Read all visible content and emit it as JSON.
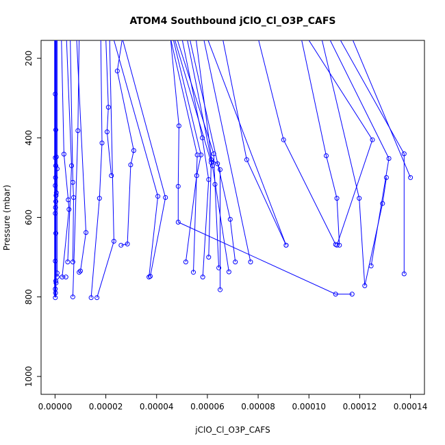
{
  "chart_data": {
    "type": "scatter",
    "title": "ATOM4 Southbound jClO_Cl_O3P_CAFS",
    "xlabel": "jClO_Cl_O3P_CAFS",
    "ylabel": "Pressure (mbar)",
    "xlim": [
      -5.5e-06,
      0.0001455
    ],
    "ylim": [
      1045,
      155
    ],
    "y_reversed": true,
    "x_ticks": [
      "0.00000",
      "0.00002",
      "0.00004",
      "0.00006",
      "0.00008",
      "0.00010",
      "0.00012",
      "0.00014"
    ],
    "x_tick_values": [
      0,
      2e-05,
      4e-05,
      6e-05,
      8e-05,
      0.0001,
      0.00012,
      0.00014
    ],
    "y_ticks": [
      "200",
      "400",
      "600",
      "800",
      "1000"
    ],
    "y_tick_values": [
      200,
      400,
      600,
      800,
      1000
    ],
    "grid": false,
    "legend": "none",
    "series": [
      {
        "color": "#0000ff",
        "marker": "open-circle",
        "connected": true,
        "profiles": [
          [
            [
              1e-07,
              150
            ],
            [
              1e-07,
              290
            ],
            [
              1e-07,
              450
            ],
            [
              1e-07,
              520
            ],
            [
              1e-07,
              590
            ],
            [
              1e-07,
              710
            ],
            [
              1e-07,
              780
            ],
            [
              1e-07,
              802
            ]
          ],
          [
            [
              3e-07,
              150
            ],
            [
              3e-07,
              380
            ],
            [
              3e-07,
              470
            ],
            [
              3e-07,
              560
            ],
            [
              3e-07,
              640
            ],
            [
              3e-07,
              760
            ]
          ],
          [
            [
              2e-07,
              150
            ],
            [
              2e-07,
              500
            ],
            [
              2e-07,
              575
            ],
            [
              2e-07,
              790
            ]
          ],
          [
            [
              8e-07,
              150
            ],
            [
              8e-07,
              478
            ],
            [
              8e-07,
              740
            ],
            [
              8e-07,
              750
            ]
          ],
          [
            [
              5e-07,
              150
            ],
            [
              5e-07,
              448
            ],
            [
              5e-07,
              538
            ]
          ],
          [
            [
              4e-07,
              150
            ],
            [
              4e-07,
              545
            ],
            [
              4e-07,
              765
            ]
          ],
          [
            [
              2.5e-06,
              150
            ],
            [
              3.5e-06,
              441
            ],
            [
              5.2e-06,
              556
            ],
            [
              5.5e-06,
              580
            ],
            [
              2.8e-06,
              750
            ],
            [
              4.3e-06,
              750
            ]
          ],
          [
            [
              4.5e-06,
              150
            ],
            [
              6.5e-06,
              470
            ],
            [
              5e-06,
              712
            ]
          ],
          [
            [
              6e-06,
              150
            ],
            [
              7e-06,
              512
            ],
            [
              7.3e-06,
              550
            ],
            [
              7e-06,
              712
            ]
          ],
          [
            [
              9.5e-06,
              150
            ],
            [
              9e-06,
              382
            ],
            [
              7e-06,
              800
            ]
          ],
          [
            [
              8.5e-06,
              150
            ],
            [
              1.22e-05,
              638
            ],
            [
              1e-05,
              735
            ],
            [
              9.5e-06,
              738
            ]
          ],
          [
            [
              1.8e-05,
              150
            ],
            [
              1.85e-05,
              413
            ],
            [
              1.75e-05,
              552
            ],
            [
              1.42e-05,
              802
            ]
          ],
          [
            [
              2e-05,
              150
            ],
            [
              2.1e-05,
              323
            ],
            [
              2.05e-05,
              385
            ],
            [
              2.22e-05,
              495
            ]
          ],
          [
            [
              2.65e-05,
              150
            ],
            [
              2.45e-05,
              232
            ],
            [
              3.1e-05,
              432
            ],
            [
              2.98e-05,
              468
            ],
            [
              2.85e-05,
              667
            ],
            [
              2.6e-05,
              670
            ]
          ],
          [
            [
              2.15e-05,
              150
            ],
            [
              2.32e-05,
              660
            ],
            [
              1.65e-05,
              802
            ]
          ],
          [
            [
              2.3e-05,
              150
            ],
            [
              4.05e-05,
              547
            ],
            [
              3.7e-05,
              750
            ]
          ],
          [
            [
              2.65e-05,
              150
            ],
            [
              4.35e-05,
              550
            ],
            [
              3.75e-05,
              748
            ]
          ],
          [
            [
              4.55e-05,
              150
            ],
            [
              4.88e-05,
              370
            ],
            [
              4.85e-05,
              522
            ],
            [
              4.85e-05,
              612
            ],
            [
              0.0001105,
              793
            ],
            [
              0.000117,
              793
            ]
          ],
          [
            [
              4.55e-05,
              150
            ],
            [
              5.6e-05,
              443
            ],
            [
              5.45e-05,
              738
            ]
          ],
          [
            [
              4.65e-05,
              150
            ],
            [
              5.75e-05,
              443
            ],
            [
              5.58e-05,
              495
            ],
            [
              5.15e-05,
              712
            ]
          ],
          [
            [
              4.7e-05,
              150
            ],
            [
              6.15e-05,
              462
            ],
            [
              6.05e-05,
              700
            ]
          ],
          [
            [
              4.8e-05,
              150
            ],
            [
              6.25e-05,
              440
            ],
            [
              6.3e-05,
              517
            ],
            [
              6.45e-05,
              727
            ]
          ],
          [
            [
              5e-05,
              150
            ],
            [
              5.8e-05,
              400
            ],
            [
              6.05e-05,
              505
            ],
            [
              5.82e-05,
              750
            ]
          ],
          [
            [
              5.2e-05,
              150
            ],
            [
              6.15e-05,
              455
            ],
            [
              6.4e-05,
              465
            ],
            [
              6.5e-05,
              480
            ],
            [
              6.5e-05,
              782
            ]
          ],
          [
            [
              5.3e-05,
              150
            ],
            [
              6.9e-05,
              605
            ],
            [
              7.1e-05,
              712
            ]
          ],
          [
            [
              5.55e-05,
              150
            ],
            [
              6.2e-05,
              470
            ],
            [
              6.85e-05,
              737
            ]
          ],
          [
            [
              5.85e-05,
              150
            ],
            [
              7.7e-05,
              712
            ]
          ],
          [
            [
              6e-05,
              150
            ],
            [
              9.1e-05,
              670
            ]
          ],
          [
            [
              6.6e-05,
              150
            ],
            [
              7.55e-05,
              455
            ],
            [
              9.1e-05,
              670
            ]
          ],
          [
            [
              8e-05,
              150
            ],
            [
              9e-05,
              405
            ],
            [
              0.0001105,
              668
            ]
          ],
          [
            [
              9.7e-05,
              150
            ],
            [
              0.0001068,
              445
            ],
            [
              0.000111,
              552
            ],
            [
              0.000112,
              670
            ]
          ],
          [
            [
              9.95e-05,
              150
            ],
            [
              0.000125,
              405
            ],
            [
              0.000111,
              670
            ]
          ],
          [
            [
              0.000105,
              150
            ],
            [
              0.0001198,
              552
            ],
            [
              0.000122,
              772
            ],
            [
              0.000129,
              565
            ],
            [
              0.0001305,
              500
            ]
          ],
          [
            [
              0.000108,
              150
            ],
            [
              0.0001315,
              452
            ],
            [
              0.0001245,
              722
            ]
          ],
          [
            [
              0.000112,
              150
            ],
            [
              0.0001375,
              440
            ],
            [
              0.0001375,
              742
            ]
          ],
          [
            [
              0.000117,
              150
            ],
            [
              0.00014,
              500
            ]
          ]
        ]
      }
    ]
  }
}
